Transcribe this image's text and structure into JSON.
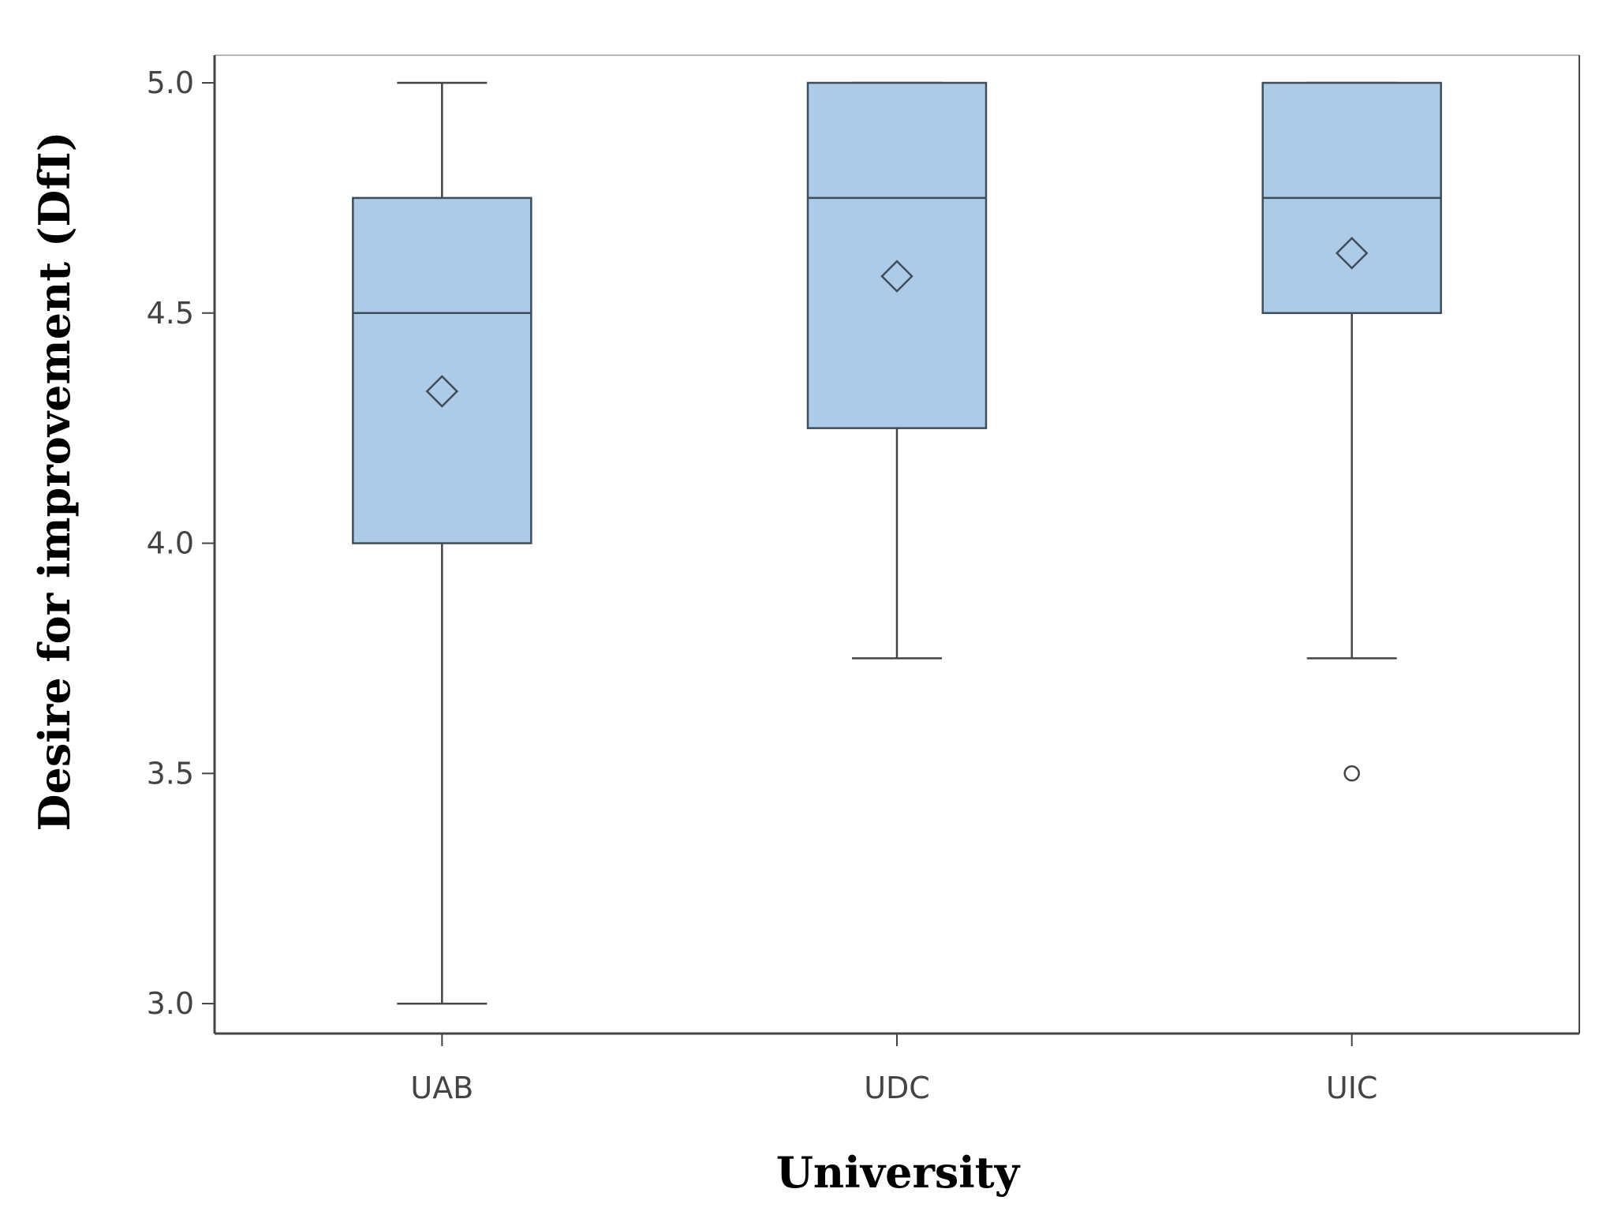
{
  "chart_data": {
    "type": "box",
    "xlabel": "University",
    "ylabel": "Desire for improvement (DfI)",
    "ylim": [
      2.935,
      5.06
    ],
    "yticks": [
      "3.0",
      "3.5",
      "4.0",
      "4.5",
      "5.0"
    ],
    "categories": [
      "UAB",
      "UDC",
      "UIC"
    ],
    "boxes": [
      {
        "category": "UAB",
        "whisker_low": 3.0,
        "q1": 4.0,
        "median": 4.5,
        "q3": 4.75,
        "whisker_high": 5.0,
        "mean": 4.33,
        "outliers": []
      },
      {
        "category": "UDC",
        "whisker_low": 3.75,
        "q1": 4.25,
        "median": 4.75,
        "q3": 5.0,
        "whisker_high": 5.0,
        "mean": 4.58,
        "outliers": []
      },
      {
        "category": "UIC",
        "whisker_low": 3.75,
        "q1": 4.5,
        "median": 4.75,
        "q3": 5.0,
        "whisker_high": 5.0,
        "mean": 4.63,
        "outliers": [
          3.5
        ]
      }
    ],
    "grid": false,
    "legend": "none"
  },
  "colors": {
    "box_fill": "#adcbe7",
    "box_stroke": "#3e4d5c",
    "whisker": "#444444",
    "axis": "#444444",
    "frame": "#b7b7b7"
  }
}
